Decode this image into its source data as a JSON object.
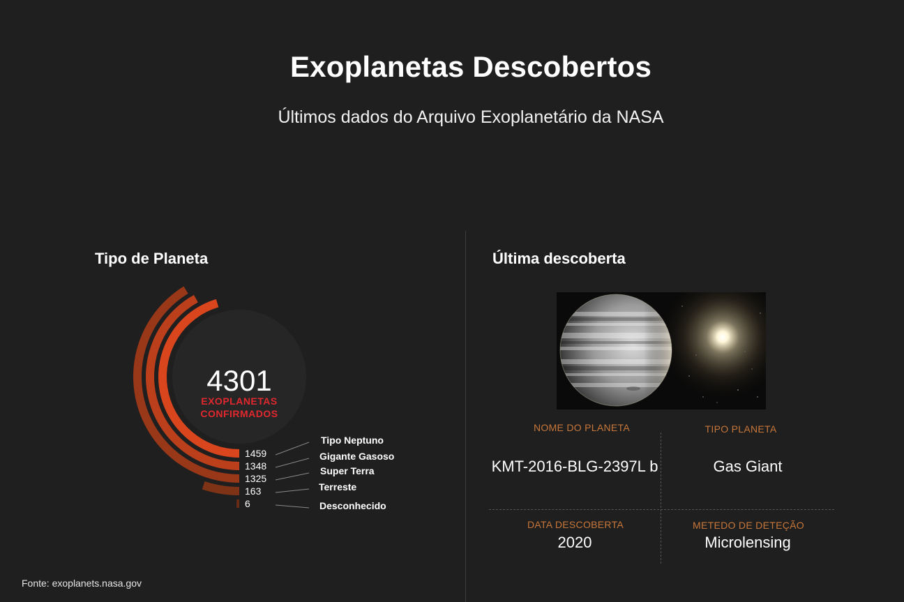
{
  "header": {
    "title": "Exoplanetas Descobertos",
    "subtitle": "Últimos dados do Arquivo Exoplanetário da NASA"
  },
  "left_panel": {
    "title": "Tipo de Planeta",
    "source": "Fonte: exoplanets.nasa.gov"
  },
  "right_panel": {
    "title": "Última descoberta",
    "planet_label": "NOME DO PLANETA",
    "planet_value": "KMT-2016-BLG-2397L b",
    "type_label": "TIPO PLANETA",
    "type_value": "Gas Giant",
    "date_label": "DATA DESCOBERTA",
    "date_value": "2020",
    "method_label": "METEDO DE DETEÇÃO",
    "method_value": "Microlensing"
  },
  "colors": {
    "center_total": "#ffffff",
    "center_caption": "#e0282e",
    "ring_1": "#d9461e",
    "ring_2": "#bc3f1c",
    "ring_3": "#993719",
    "ring_4": "#7e3317",
    "ring_5": "#6a2b15",
    "accent_label": "#c8773a",
    "background": "#1f1f1f"
  },
  "chart_data": {
    "type": "radial-bar",
    "total": "4301",
    "total_caption_line1": "EXOPLANETAS",
    "total_caption_line2": "CONFIRMADOS",
    "categories": [
      "Tipo Neptuno",
      "Gigante Gasoso",
      "Super Terra",
      "Terreste",
      "Desconhecido"
    ],
    "values": [
      1459,
      1348,
      1325,
      163,
      6
    ]
  }
}
